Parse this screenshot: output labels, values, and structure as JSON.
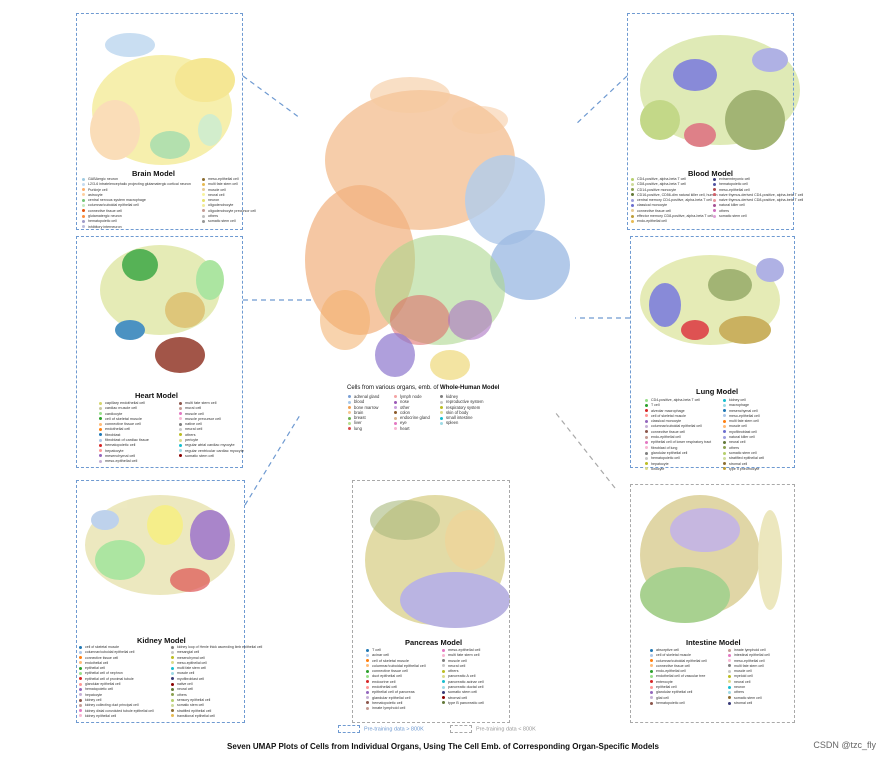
{
  "caption": "Seven UMAP Plots of Cells from Individual Organs, Using The Cell Emb. of Corresponding Organ-Specific Models",
  "watermark": "CSDN @tzc_fly",
  "key": {
    "large": "Pre-training data > 800K",
    "small": "Pre-training data < 800K",
    "large_color": "#6f9ad1",
    "small_color": "#a9a9a9"
  },
  "whole_human": {
    "title_prefix": "Cells from various organs, emb. of ",
    "title_bold": "Whole-Human Model",
    "legend": [
      {
        "label": "adrenal gland",
        "color": "#7b9fd4"
      },
      {
        "label": "blood",
        "color": "#a8c8e8"
      },
      {
        "label": "bone marrow",
        "color": "#f0a050"
      },
      {
        "label": "brain",
        "color": "#f7c590"
      },
      {
        "label": "breast",
        "color": "#6ab04c"
      },
      {
        "label": "liver",
        "color": "#b5e08c"
      },
      {
        "label": "lung",
        "color": "#d84b4b"
      },
      {
        "label": "lymph node",
        "color": "#f4a3a3"
      },
      {
        "label": "nose",
        "color": "#9b59b6"
      },
      {
        "label": "other",
        "color": "#c9a0dc"
      },
      {
        "label": "colon",
        "color": "#8b5a2b"
      },
      {
        "label": "endocrine gland",
        "color": "#d9b38c"
      },
      {
        "label": "eye",
        "color": "#e377c2"
      },
      {
        "label": "heart",
        "color": "#f7b6d2"
      },
      {
        "label": "kidney",
        "color": "#7f7f7f"
      },
      {
        "label": "reproductive system",
        "color": "#c7c7c7"
      },
      {
        "label": "respiratory system",
        "color": "#bcbd22"
      },
      {
        "label": "skin of body",
        "color": "#dbdb8d"
      },
      {
        "label": "small intestine",
        "color": "#17becf"
      },
      {
        "label": "spleen",
        "color": "#9edae5"
      }
    ]
  },
  "brain": {
    "title": "Brain Model",
    "legend": [
      {
        "label": "GABAergic neuron",
        "color": "#9ecae1"
      },
      {
        "label": "L2/3-6 intratelencephalic projecting glutamatergic cortical neuron",
        "color": "#c6dbef"
      },
      {
        "label": "Purkinje cell",
        "color": "#fdae6b"
      },
      {
        "label": "astrocyte",
        "color": "#fdd0a2"
      },
      {
        "label": "central nervous system macrophage",
        "color": "#74c476"
      },
      {
        "label": "columnar/cuboidal epithelial cell",
        "color": "#c7e9c0"
      },
      {
        "label": "connective tissue cell",
        "color": "#e6550d"
      },
      {
        "label": "glutamatergic neuron",
        "color": "#fd8d3c"
      },
      {
        "label": "hematopoietic cell",
        "color": "#9e9ac8"
      },
      {
        "label": "inhibitory interneuron",
        "color": "#bcbddc"
      },
      {
        "label": "meso-epithelial cell",
        "color": "#8c6d31"
      },
      {
        "label": "multi fate stem cell",
        "color": "#e7ba52"
      },
      {
        "label": "muscle cell",
        "color": "#e7cb94"
      },
      {
        "label": "neural cell",
        "color": "#f7f3a0"
      },
      {
        "label": "neuron",
        "color": "#e8e26a"
      },
      {
        "label": "oligodendrocyte",
        "color": "#f2ec9b"
      },
      {
        "label": "oligodendrocyte precursor cell",
        "color": "#c49c94"
      },
      {
        "label": "others",
        "color": "#bdbdbd"
      },
      {
        "label": "somatic stem cell",
        "color": "#969696"
      }
    ]
  },
  "blood": {
    "title": "Blood Model",
    "legend": [
      {
        "label": "CD4-positive, alpha-beta T cell",
        "color": "#b5cf6b"
      },
      {
        "label": "CD8-positive, alpha-beta T cell",
        "color": "#cedb9c"
      },
      {
        "label": "CD14-positive monocyte",
        "color": "#8ca252"
      },
      {
        "label": "CD16-positive, CD56-dim natural killer cell, human",
        "color": "#637939"
      },
      {
        "label": "central memory CD4-positive, alpha-beta T cell",
        "color": "#9c9ede"
      },
      {
        "label": "classical monocyte",
        "color": "#6b6ecf"
      },
      {
        "label": "connective tissue cell",
        "color": "#e7cb94"
      },
      {
        "label": "effector memory CD8-positive, alpha-beta T cell",
        "color": "#bd9e39"
      },
      {
        "label": "endo-epithelial cell",
        "color": "#e7ba52"
      },
      {
        "label": "extraembryonic cell",
        "color": "#393b79"
      },
      {
        "label": "hematopoietic cell",
        "color": "#5254a3"
      },
      {
        "label": "meso-epithelial cell",
        "color": "#ad494a"
      },
      {
        "label": "naive thymus-derived CD4-positive, alpha-beta T cell",
        "color": "#d6616b"
      },
      {
        "label": "naive thymus-derived CD8-positive, alpha-beta T cell",
        "color": "#e7969c"
      },
      {
        "label": "natural killer cell",
        "color": "#a55194"
      },
      {
        "label": "others",
        "color": "#ce6dbd"
      },
      {
        "label": "somatic stem cell",
        "color": "#de9ed6"
      }
    ]
  },
  "heart": {
    "title": "Heart Model",
    "legend": [
      {
        "label": "capillary endothelial cell",
        "color": "#d6d66b"
      },
      {
        "label": "cardiac muscle cell",
        "color": "#c7c7a0"
      },
      {
        "label": "cardiocyte",
        "color": "#98df8a"
      },
      {
        "label": "cell of skeletal muscle",
        "color": "#2ca02c"
      },
      {
        "label": "connective tissue cell",
        "color": "#ffbb78"
      },
      {
        "label": "endothelial cell",
        "color": "#ff7f0e"
      },
      {
        "label": "fibroblast",
        "color": "#1f77b4"
      },
      {
        "label": "fibroblast of cardiac tissue",
        "color": "#aec7e8"
      },
      {
        "label": "hematopoietic cell",
        "color": "#d62728"
      },
      {
        "label": "hepatocyte",
        "color": "#ff9896"
      },
      {
        "label": "mesenchymal cell",
        "color": "#9467bd"
      },
      {
        "label": "meso-epithelial cell",
        "color": "#c5b0d5"
      },
      {
        "label": "multi fate stem cell",
        "color": "#8c564b"
      },
      {
        "label": "mural cell",
        "color": "#c49c94"
      },
      {
        "label": "muscle cell",
        "color": "#e377c2"
      },
      {
        "label": "muscle precursor cell",
        "color": "#f7b6d2"
      },
      {
        "label": "native cell",
        "color": "#7f7f7f"
      },
      {
        "label": "neural cell",
        "color": "#c7c7c7"
      },
      {
        "label": "others",
        "color": "#bcbd22"
      },
      {
        "label": "pericyte",
        "color": "#dbdb8d"
      },
      {
        "label": "regular atrial cardiac myocyte",
        "color": "#17becf"
      },
      {
        "label": "regular ventricular cardiac myocyte",
        "color": "#9edae5"
      },
      {
        "label": "somatic stem cell",
        "color": "#8b0000"
      }
    ]
  },
  "lung": {
    "title": "Lung Model",
    "legend": [
      {
        "label": "CD4-positive, alpha-beta T cell",
        "color": "#98df8a"
      },
      {
        "label": "T cell",
        "color": "#2ca02c"
      },
      {
        "label": "alveolar macrophage",
        "color": "#d62728"
      },
      {
        "label": "cell of skeletal muscle",
        "color": "#ff9896"
      },
      {
        "label": "classical monocyte",
        "color": "#9467bd"
      },
      {
        "label": "columnar/cuboidal epithelial cell",
        "color": "#c5b0d5"
      },
      {
        "label": "connective tissue cell",
        "color": "#8c564b"
      },
      {
        "label": "endo-epithelial cell",
        "color": "#c49c94"
      },
      {
        "label": "epithelial cell of lower respiratory tract",
        "color": "#e377c2"
      },
      {
        "label": "fibroblast of lung",
        "color": "#f7b6d2"
      },
      {
        "label": "glandular epithelial cell",
        "color": "#7f7f7f"
      },
      {
        "label": "hematopoietic cell",
        "color": "#c7c7c7"
      },
      {
        "label": "hepatocyte",
        "color": "#bcbd22"
      },
      {
        "label": "ionocyte",
        "color": "#dbdb8d"
      },
      {
        "label": "kidney cell",
        "color": "#17becf"
      },
      {
        "label": "macrophage",
        "color": "#9edae5"
      },
      {
        "label": "mesenchymal cell",
        "color": "#1f77b4"
      },
      {
        "label": "meso-epithelial cell",
        "color": "#aec7e8"
      },
      {
        "label": "multi fate stem cell",
        "color": "#ff7f0e"
      },
      {
        "label": "muscle cell",
        "color": "#ffbb78"
      },
      {
        "label": "myofibroblast cell",
        "color": "#6b6ecf"
      },
      {
        "label": "natural killer cell",
        "color": "#9c9ede"
      },
      {
        "label": "neural cell",
        "color": "#637939"
      },
      {
        "label": "others",
        "color": "#8ca252"
      },
      {
        "label": "somatic stem cell",
        "color": "#b5cf6b"
      },
      {
        "label": "stratified epithelial cell",
        "color": "#cedb9c"
      },
      {
        "label": "stromal cell",
        "color": "#8c6d31"
      },
      {
        "label": "type II pneumocyte",
        "color": "#bd9e39"
      }
    ]
  },
  "kidney": {
    "title": "Kidney Model",
    "legend": [
      {
        "label": "cell of skeletal muscle",
        "color": "#1f77b4"
      },
      {
        "label": "columnar/cuboidal epithelial cell",
        "color": "#aec7e8"
      },
      {
        "label": "connective tissue cell",
        "color": "#ff7f0e"
      },
      {
        "label": "endothelial cell",
        "color": "#ffbb78"
      },
      {
        "label": "epithelial cell",
        "color": "#2ca02c"
      },
      {
        "label": "epithelial cell of nephron",
        "color": "#98df8a"
      },
      {
        "label": "epithelial cell of proximal tubule",
        "color": "#d62728"
      },
      {
        "label": "glandular epithelial cell",
        "color": "#ff9896"
      },
      {
        "label": "hematopoietic cell",
        "color": "#9467bd"
      },
      {
        "label": "hepatocyte",
        "color": "#c5b0d5"
      },
      {
        "label": "kidney cell",
        "color": "#8c564b"
      },
      {
        "label": "kidney collecting duct principal cell",
        "color": "#c49c94"
      },
      {
        "label": "kidney distal convoluted tubule epithelial cell",
        "color": "#e377c2"
      },
      {
        "label": "kidney epithelial cell",
        "color": "#f7b6d2"
      },
      {
        "label": "kidney loop of Henle thick ascending limb epithelial cell",
        "color": "#7f7f7f"
      },
      {
        "label": "mesangial cell",
        "color": "#c7c7c7"
      },
      {
        "label": "mesenchymal cell",
        "color": "#bcbd22"
      },
      {
        "label": "meso-epithelial cell",
        "color": "#dbdb8d"
      },
      {
        "label": "multi fate stem cell",
        "color": "#17becf"
      },
      {
        "label": "muscle cell",
        "color": "#9edae5"
      },
      {
        "label": "myofibroblast cell",
        "color": "#393b79"
      },
      {
        "label": "native cell",
        "color": "#8b0000"
      },
      {
        "label": "neural cell",
        "color": "#637939"
      },
      {
        "label": "others",
        "color": "#8ca252"
      },
      {
        "label": "sensory epithelial cell",
        "color": "#b5cf6b"
      },
      {
        "label": "somatic stem cell",
        "color": "#cedb9c"
      },
      {
        "label": "stratified epithelial cell",
        "color": "#8c6d31"
      },
      {
        "label": "transitional epithelial cell",
        "color": "#e7ba52"
      }
    ]
  },
  "pancreas": {
    "title": "Pancreas Model",
    "legend": [
      {
        "label": "T cell",
        "color": "#1f77b4"
      },
      {
        "label": "acinar cell",
        "color": "#aec7e8"
      },
      {
        "label": "cell of skeletal muscle",
        "color": "#ff7f0e"
      },
      {
        "label": "columnar/cuboidal epithelial cell",
        "color": "#ffbb78"
      },
      {
        "label": "connective tissue cell",
        "color": "#2ca02c"
      },
      {
        "label": "duct epithelial cell",
        "color": "#98df8a"
      },
      {
        "label": "endocrine cell",
        "color": "#d62728"
      },
      {
        "label": "endothelial cell",
        "color": "#ff9896"
      },
      {
        "label": "epithelial cell of pancreas",
        "color": "#9467bd"
      },
      {
        "label": "glandular epithelial cell",
        "color": "#c5b0d5"
      },
      {
        "label": "hematopoietic cell",
        "color": "#8c564b"
      },
      {
        "label": "innate lymphoid cell",
        "color": "#c49c94"
      },
      {
        "label": "meso-epithelial cell",
        "color": "#e377c2"
      },
      {
        "label": "multi fate stem cell",
        "color": "#f7b6d2"
      },
      {
        "label": "muscle cell",
        "color": "#7f7f7f"
      },
      {
        "label": "neural cell",
        "color": "#c7c7c7"
      },
      {
        "label": "others",
        "color": "#bcbd22"
      },
      {
        "label": "pancreatic A cell",
        "color": "#dbdb8d"
      },
      {
        "label": "pancreatic acinar cell",
        "color": "#17becf"
      },
      {
        "label": "pancreatic ductal cell",
        "color": "#9edae5"
      },
      {
        "label": "somatic stem cell",
        "color": "#393b79"
      },
      {
        "label": "stromal cell",
        "color": "#8b0000"
      },
      {
        "label": "type B pancreatic cell",
        "color": "#637939"
      }
    ]
  },
  "intestine": {
    "title": "Intestine Model",
    "legend": [
      {
        "label": "absorptive cell",
        "color": "#1f77b4"
      },
      {
        "label": "cell of skeletal muscle",
        "color": "#aec7e8"
      },
      {
        "label": "columnar/cuboidal epithelial cell",
        "color": "#ff7f0e"
      },
      {
        "label": "connective tissue cell",
        "color": "#ffbb78"
      },
      {
        "label": "endo-epithelial cell",
        "color": "#2ca02c"
      },
      {
        "label": "endothelial cell of vascular tree",
        "color": "#98df8a"
      },
      {
        "label": "enterocyte",
        "color": "#d62728"
      },
      {
        "label": "epithelial cell",
        "color": "#ff9896"
      },
      {
        "label": "glandular epithelial cell",
        "color": "#9467bd"
      },
      {
        "label": "glial cell",
        "color": "#c5b0d5"
      },
      {
        "label": "hematopoietic cell",
        "color": "#8c564b"
      },
      {
        "label": "innate lymphoid cell",
        "color": "#c49c94"
      },
      {
        "label": "intestinal epithelial cell",
        "color": "#e377c2"
      },
      {
        "label": "meso-epithelial cell",
        "color": "#f7b6d2"
      },
      {
        "label": "multi fate stem cell",
        "color": "#7f7f7f"
      },
      {
        "label": "muscle cell",
        "color": "#c7c7c7"
      },
      {
        "label": "myeloid cell",
        "color": "#bcbd22"
      },
      {
        "label": "neural cell",
        "color": "#dbdb8d"
      },
      {
        "label": "neuron",
        "color": "#17becf"
      },
      {
        "label": "others",
        "color": "#9edae5"
      },
      {
        "label": "somatic stem cell",
        "color": "#8c6d31"
      },
      {
        "label": "stromal cell",
        "color": "#393b79"
      }
    ]
  }
}
